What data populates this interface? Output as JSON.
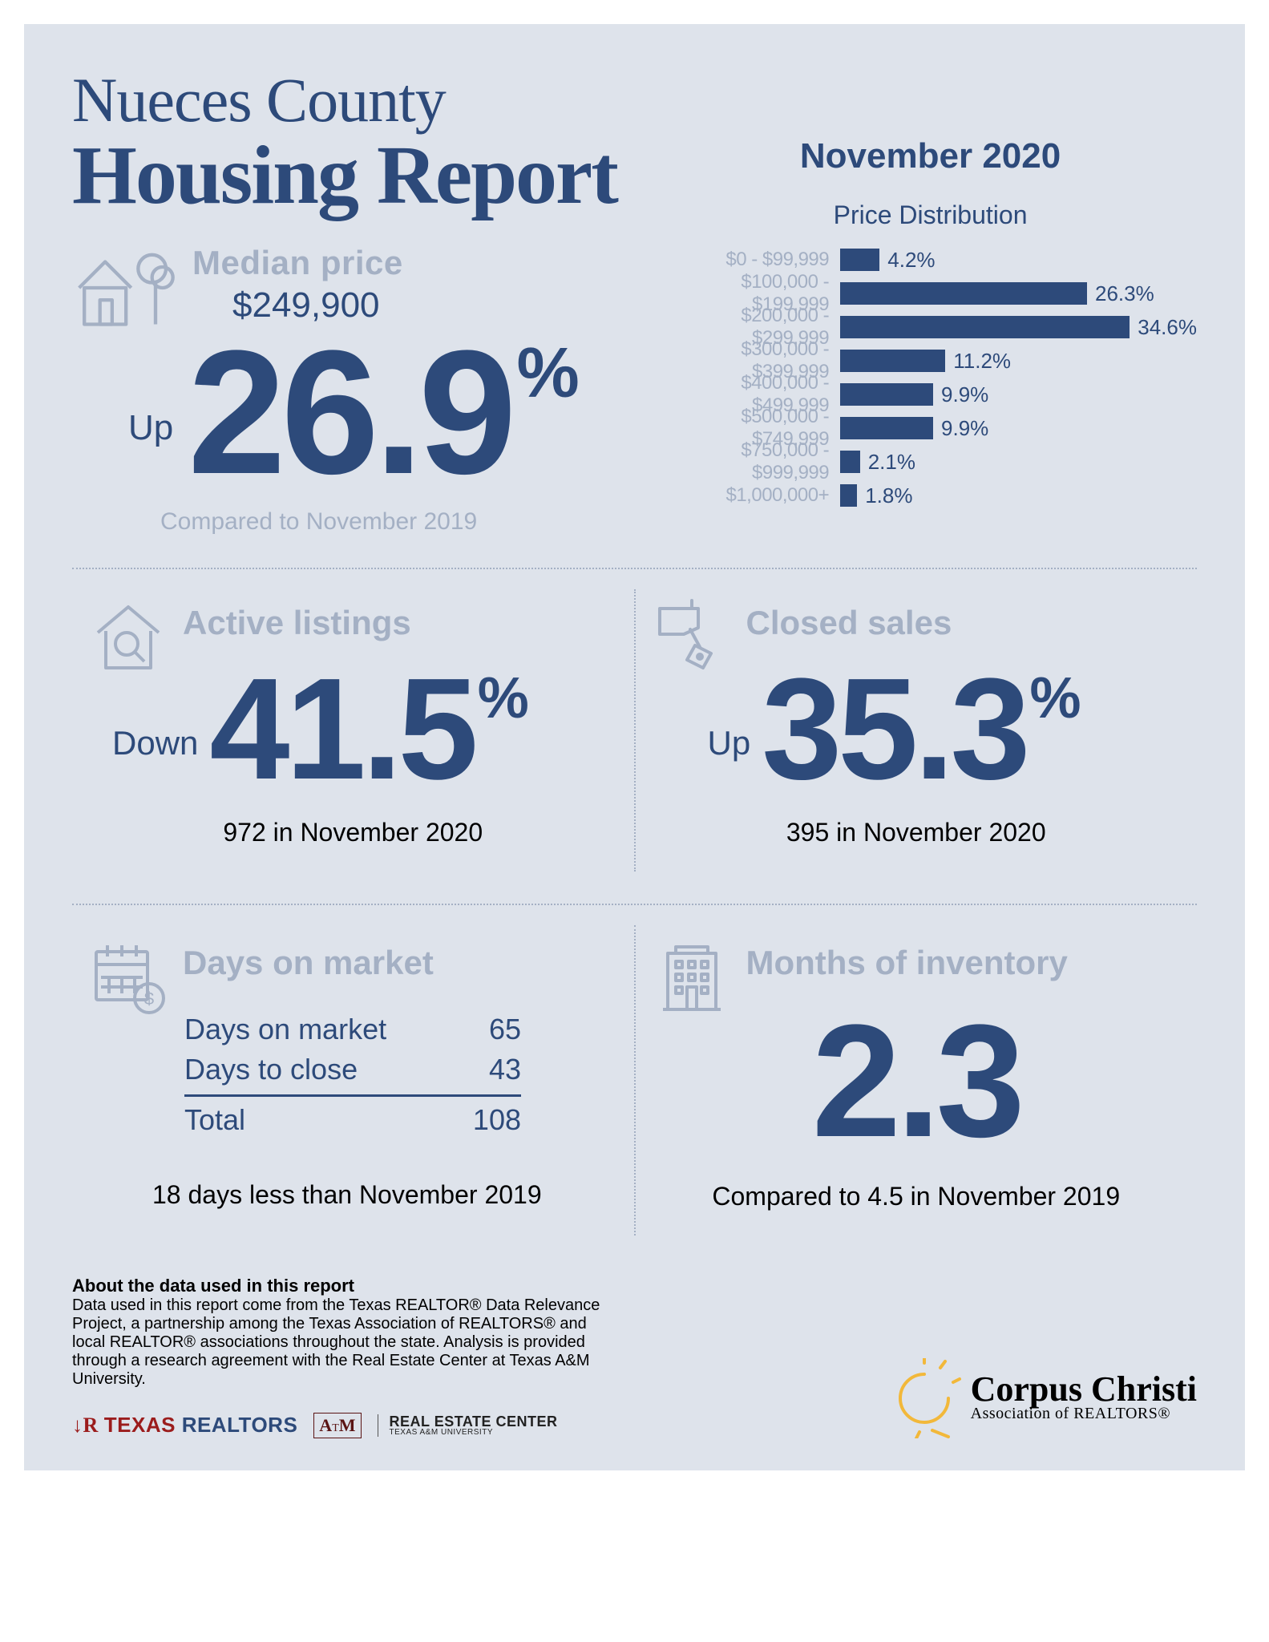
{
  "title_small": "Nueces County",
  "title_big": "Housing Report",
  "date_head": "November 2020",
  "chart_title": "Price Distribution",
  "median": {
    "label": "Median price",
    "price": "$249,900",
    "prefix": "Up",
    "value": "26.9",
    "pct": "%",
    "compared": "Compared to November 2019"
  },
  "price_dist": {
    "max_pct": 38,
    "bar_color": "#2d4a7a",
    "label_color": "#a4b0c4",
    "value_color": "#2d4a7a",
    "label_fontsize": 24,
    "value_fontsize": 26,
    "rows": [
      {
        "label": "$0 - $99,999",
        "value": 4.2,
        "text": "4.2%"
      },
      {
        "label": "$100,000 - $199,999",
        "value": 26.3,
        "text": "26.3%"
      },
      {
        "label": "$200,000 - $299,999",
        "value": 34.6,
        "text": "34.6%"
      },
      {
        "label": "$300,000 - $399,999",
        "value": 11.2,
        "text": "11.2%"
      },
      {
        "label": "$400,000 - $499,999",
        "value": 9.9,
        "text": "9.9%"
      },
      {
        "label": "$500,000 - $749,999",
        "value": 9.9,
        "text": "9.9%"
      },
      {
        "label": "$750,000 - $999,999",
        "value": 2.1,
        "text": "2.1%"
      },
      {
        "label": "$1,000,000+",
        "value": 1.8,
        "text": "1.8%"
      }
    ]
  },
  "active": {
    "label": "Active listings",
    "prefix": "Down",
    "value": "41.5",
    "pct": "%",
    "sub": "972 in November 2020"
  },
  "closed": {
    "label": "Closed sales",
    "prefix": "Up",
    "value": "35.3",
    "pct": "%",
    "sub": "395 in November 2020"
  },
  "dom": {
    "label": "Days on market",
    "row1_label": "Days on market",
    "row1_val": "65",
    "row2_label": "Days to close",
    "row2_val": "43",
    "total_label": "Total",
    "total_val": "108",
    "sub": "18 days less than November 2019"
  },
  "moi": {
    "label": "Months of inventory",
    "value": "2.3",
    "sub": "Compared to 4.5 in November 2019"
  },
  "about": {
    "head": "About the data used in this report",
    "body": "Data used in this report come from the Texas REALTOR® Data Relevance Project, a partnership among the Texas Association of REALTORS® and local REALTOR® associations throughout the state. Analysis is provided through a research agreement with the Real Estate Center at Texas A&M University."
  },
  "logos": {
    "tr1": "TEXAS",
    "tr2": " REALTORS",
    "atm": "A|M",
    "rec1": "REAL ESTATE CENTER",
    "rec2": "TEXAS A&M UNIVERSITY",
    "cc1": "Corpus Christi",
    "cc2": "Association of REALTORS®"
  },
  "colors": {
    "primary": "#2d4a7a",
    "muted": "#a4b0c4",
    "bg": "#dee3eb",
    "black": "#000000"
  }
}
